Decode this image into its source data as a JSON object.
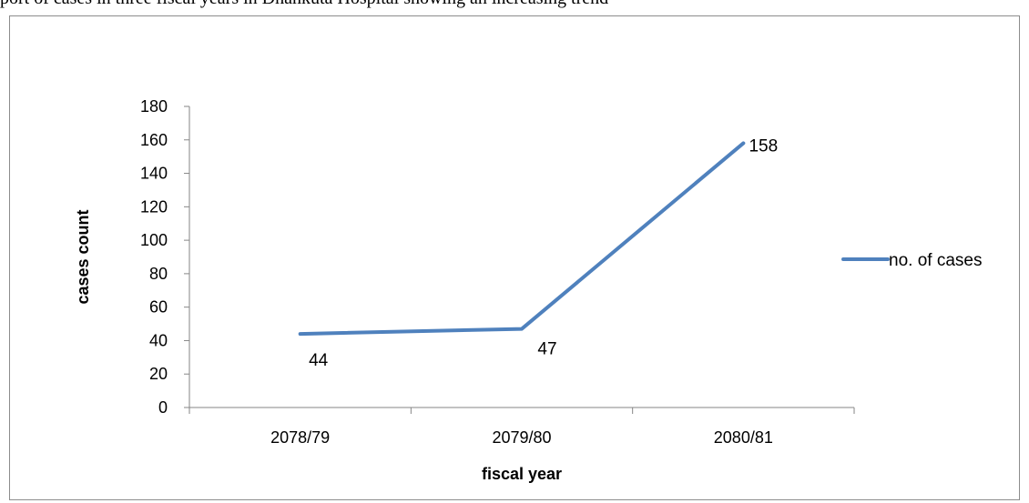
{
  "caption_fragment": "port of cases in three fiscal years in Dhankuta Hospital showing an increasing trend",
  "colors": {
    "series": "#4f81bd",
    "axis": "#868686",
    "frame": "#8c8c8c"
  },
  "chart_data": {
    "type": "line",
    "categories": [
      "2078/79",
      "2079/80",
      "2080/81"
    ],
    "series": [
      {
        "name": "no. of cases",
        "values": [
          44,
          47,
          158
        ]
      }
    ],
    "xlabel": "fiscal year",
    "ylabel": "cases count",
    "ylim": [
      0,
      180
    ],
    "yticks": [
      0,
      20,
      40,
      60,
      80,
      100,
      120,
      140,
      160,
      180
    ],
    "grid": false,
    "legend_position": "right",
    "data_labels": true
  }
}
